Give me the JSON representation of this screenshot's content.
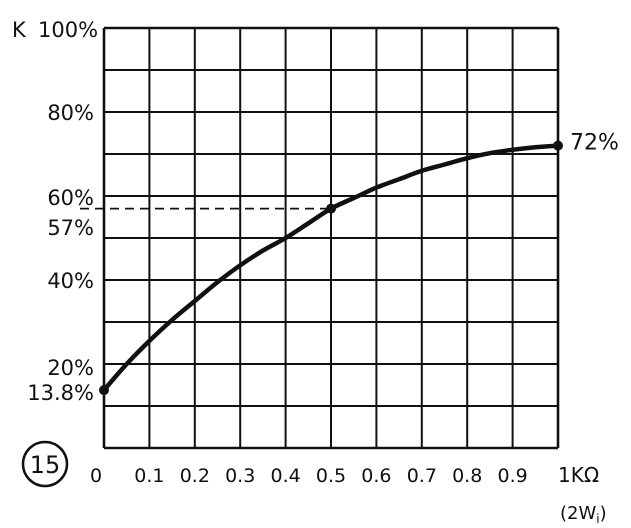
{
  "figure_number": "15",
  "chart_data": {
    "type": "line",
    "title": "",
    "ylabel": "K",
    "xunit_label": "1KΩ",
    "xunit_sub": "(2W",
    "xunit_sub_index": "i",
    "xunit_sub_close": ")",
    "xlim": [
      0,
      1.0
    ],
    "ylim": [
      0,
      100
    ],
    "grid": true,
    "x_ticks": [
      {
        "value": 0,
        "label": "0"
      },
      {
        "value": 0.1,
        "label": "0.1"
      },
      {
        "value": 0.2,
        "label": "0.2"
      },
      {
        "value": 0.3,
        "label": "0.3"
      },
      {
        "value": 0.4,
        "label": "0.4"
      },
      {
        "value": 0.5,
        "label": "0.5"
      },
      {
        "value": 0.6,
        "label": "0.6"
      },
      {
        "value": 0.7,
        "label": "0.7"
      },
      {
        "value": 0.8,
        "label": "0.8"
      },
      {
        "value": 0.9,
        "label": "0.9"
      }
    ],
    "y_ticks": [
      {
        "value": 100,
        "label": "100%"
      },
      {
        "value": 80,
        "label": "80%"
      },
      {
        "value": 60,
        "label": "60%"
      },
      {
        "value": 57,
        "label": "57%"
      },
      {
        "value": 40,
        "label": "40%"
      },
      {
        "value": 20,
        "label": "20%"
      },
      {
        "value": 13.8,
        "label": "13.8%"
      }
    ],
    "series": [
      {
        "x": [
          0,
          0.05,
          0.1,
          0.15,
          0.2,
          0.25,
          0.3,
          0.35,
          0.4,
          0.45,
          0.5,
          0.55,
          0.6,
          0.65,
          0.7,
          0.75,
          0.8,
          0.85,
          0.9,
          0.95,
          1.0
        ],
        "y": [
          13.8,
          20,
          25.5,
          30.5,
          35,
          39.5,
          43.5,
          47,
          50,
          53.5,
          57,
          59.5,
          62,
          64,
          66,
          67.5,
          69,
          70.2,
          71,
          71.6,
          72
        ]
      }
    ],
    "points": [
      {
        "x": 0,
        "y": 13.8
      },
      {
        "x": 0.5,
        "y": 57
      },
      {
        "x": 1.0,
        "y": 72,
        "label": "72%"
      }
    ],
    "reference_line": {
      "y": 57,
      "x_to": 0.5,
      "style": "dashed"
    }
  }
}
